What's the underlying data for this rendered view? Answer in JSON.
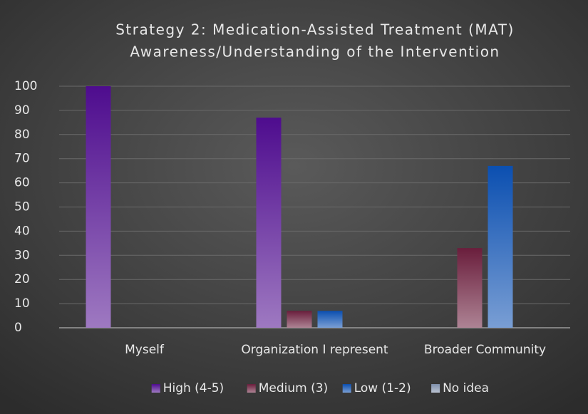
{
  "chart_data": {
    "type": "bar",
    "title": "Strategy 2: Medication-Assisted Treatment (MAT)",
    "subtitle": "Awareness/Understanding of the Intervention",
    "categories": [
      "Myself",
      "Organization I represent",
      "Broader Community"
    ],
    "series": [
      {
        "name": "High (4-5)",
        "color": "#4e0c8e",
        "values": [
          100,
          87,
          0
        ]
      },
      {
        "name": "Medium (3)",
        "color": "#6a1e3c",
        "values": [
          0,
          7,
          33
        ]
      },
      {
        "name": "Low (1-2)",
        "color": "#0b4fb0",
        "values": [
          0,
          7,
          67
        ]
      },
      {
        "name": "No idea",
        "color": "#7f90ac",
        "values": [
          0,
          0,
          0
        ]
      }
    ],
    "ylim": [
      0,
      100
    ],
    "yticks": [
      0,
      10,
      20,
      30,
      40,
      50,
      60,
      70,
      80,
      90,
      100
    ],
    "grid": true,
    "legend": "bottom"
  }
}
